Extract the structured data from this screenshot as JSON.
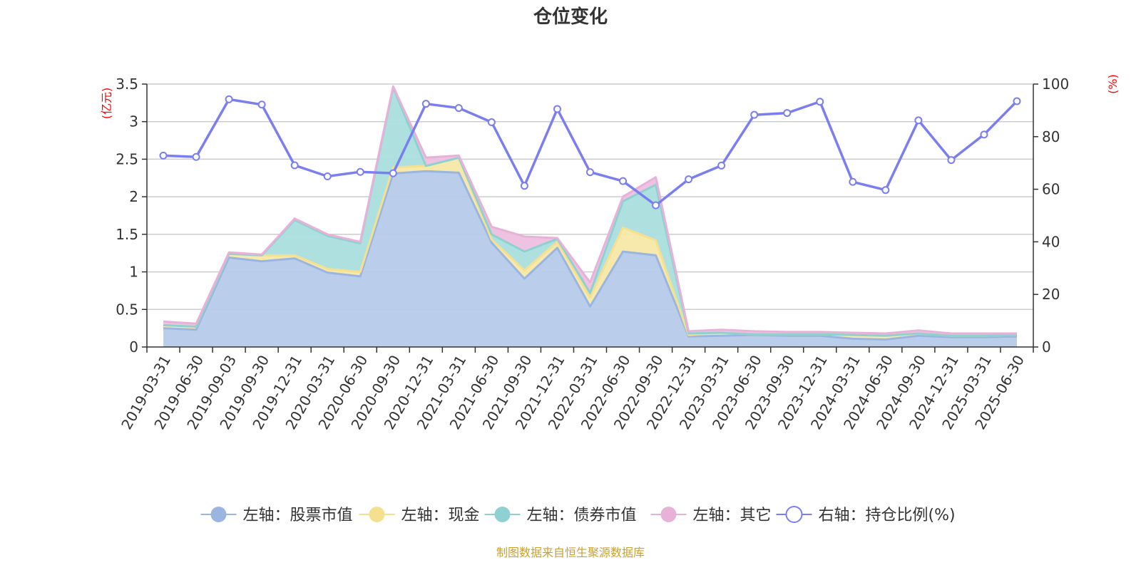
{
  "chart_data": {
    "type": "area",
    "title": "仓位变化",
    "left_unit": "(亿元)",
    "right_unit": "(%)",
    "categories": [
      "2019-03-31",
      "2019-06-30",
      "2019-09-03",
      "2019-09-30",
      "2019-12-31",
      "2020-03-31",
      "2020-06-30",
      "2020-09-30",
      "2020-12-31",
      "2021-03-31",
      "2021-06-30",
      "2021-09-30",
      "2021-12-31",
      "2022-03-31",
      "2022-06-30",
      "2022-09-30",
      "2022-12-31",
      "2023-03-31",
      "2023-06-30",
      "2023-09-30",
      "2023-12-31",
      "2024-03-31",
      "2024-06-30",
      "2024-09-30",
      "2024-12-31",
      "2025-03-31",
      "2025-06-30"
    ],
    "left_axis": {
      "min": 0,
      "max": 3.5,
      "ticks": [
        "0",
        "0.5",
        "1",
        "1.5",
        "2",
        "2.5",
        "3",
        "3.5"
      ]
    },
    "right_axis": {
      "min": 0,
      "max": 100,
      "ticks": [
        "0",
        "20",
        "40",
        "60",
        "80",
        "100"
      ]
    },
    "grid": true,
    "legend_position": "bottom",
    "series": [
      {
        "name": "左轴：股票市值",
        "kind": "stacked-area",
        "axis": "left",
        "color": "#9ab6e0",
        "fill": "#b6cbeb",
        "values": [
          0.25,
          0.23,
          1.19,
          1.14,
          1.18,
          0.99,
          0.94,
          2.31,
          2.34,
          2.32,
          1.39,
          0.91,
          1.32,
          0.54,
          1.27,
          1.22,
          0.14,
          0.15,
          0.16,
          0.15,
          0.15,
          0.11,
          0.1,
          0.15,
          0.13,
          0.13,
          0.14
        ]
      },
      {
        "name": "左轴：现金",
        "kind": "stacked-area",
        "axis": "left",
        "color": "#f5e08f",
        "fill": "#f7e7a8",
        "values": [
          0.04,
          0.04,
          0.05,
          0.08,
          0.04,
          0.05,
          0.06,
          0.08,
          0.07,
          0.2,
          0.04,
          0.11,
          0.08,
          0.12,
          0.32,
          0.2,
          0.02,
          0.04,
          0.01,
          0.02,
          0.02,
          0.05,
          0.05,
          0.03,
          0.02,
          0.02,
          0.02
        ]
      },
      {
        "name": "左轴：债券市值",
        "kind": "stacked-area",
        "axis": "left",
        "color": "#8fd1d1",
        "fill": "#aadede",
        "values": [
          0,
          0,
          0,
          0,
          0.47,
          0.44,
          0.38,
          1.06,
          0,
          0,
          0.07,
          0.25,
          0.04,
          0.06,
          0.35,
          0.74,
          0.02,
          0,
          0,
          0,
          0,
          0,
          0,
          0,
          0,
          0,
          0
        ]
      },
      {
        "name": "左轴：其它",
        "kind": "stacked-area",
        "axis": "left",
        "color": "#e8b2d8",
        "fill": "#edc0e0",
        "values": [
          0.05,
          0.04,
          0.02,
          0.01,
          0.02,
          0.02,
          0.02,
          0.02,
          0.11,
          0.03,
          0.1,
          0.2,
          0.01,
          0.14,
          0.06,
          0.1,
          0.03,
          0.04,
          0.04,
          0.03,
          0.03,
          0.03,
          0.03,
          0.04,
          0.03,
          0.03,
          0.02
        ]
      },
      {
        "name": "右轴：持仓比例(%)",
        "kind": "line",
        "axis": "right",
        "color": "#7a7ef0",
        "values": [
          72.8,
          72.3,
          94.2,
          92.2,
          69.1,
          64.9,
          66.6,
          66.1,
          92.5,
          90.9,
          85.5,
          61.3,
          90.5,
          66.5,
          63.1,
          53.9,
          63.8,
          69,
          88.3,
          89,
          93.3,
          62.8,
          59.7,
          86.2,
          71.1,
          80.8,
          93.5
        ]
      }
    ],
    "source_note": "制图数据来自恒生聚源数据库"
  }
}
